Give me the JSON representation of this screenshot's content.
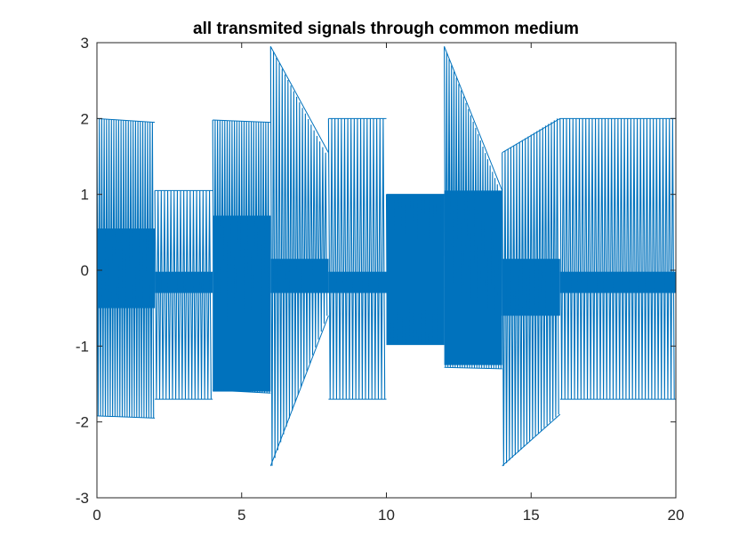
{
  "chart_data": {
    "type": "line",
    "title": "all transmited signals through common medium",
    "xlabel": "",
    "ylabel": "",
    "xlim": [
      0,
      20
    ],
    "ylim": [
      -3,
      3
    ],
    "x_ticks": [
      "0",
      "5",
      "10",
      "15",
      "20"
    ],
    "y_ticks": [
      "3",
      "2",
      "1",
      "0",
      "-1",
      "-2",
      "-3"
    ],
    "grid": false,
    "legend": "none",
    "line_color": "#0072BD",
    "series": [
      {
        "segments": [
          {
            "x_start": 0,
            "x_end": 2,
            "peaks": [
              2.0,
              1.95
            ],
            "troughs": [
              -1.92,
              -1.95
            ],
            "core": [
              0.55,
              -0.5
            ],
            "cycles": 24
          },
          {
            "x_start": 2,
            "x_end": 4,
            "peaks": [
              1.05
            ],
            "troughs": [
              -1.7
            ],
            "core": [
              -0.02,
              -0.3
            ],
            "cycles": 18
          },
          {
            "x_start": 4,
            "x_end": 6,
            "peaks": [
              1.98,
              1.95
            ],
            "troughs": [
              -1.58,
              -1.62
            ],
            "core": [
              0.72,
              -1.6
            ],
            "cycles": 24
          },
          {
            "x_start": 6,
            "x_end": 8,
            "peaks": [
              2.95,
              1.55
            ],
            "troughs": [
              -2.58,
              -0.6
            ],
            "core": [
              0.15,
              -0.3
            ],
            "cycles": 20
          },
          {
            "x_start": 8,
            "x_end": 10,
            "peaks": [
              2.0
            ],
            "troughs": [
              -1.7
            ],
            "core": [
              -0.02,
              -0.3
            ],
            "cycles": 18
          },
          {
            "x_start": 10,
            "x_end": 12,
            "peaks": [
              1.0
            ],
            "troughs": [
              -0.98
            ],
            "core": [
              1.0,
              -0.98
            ],
            "cycles": 40
          },
          {
            "x_start": 12,
            "x_end": 14,
            "peaks": [
              2.95,
              1.05
            ],
            "troughs": [
              -1.28,
              -1.3
            ],
            "core": [
              1.05,
              -1.25
            ],
            "cycles": 24
          },
          {
            "x_start": 14,
            "x_end": 16,
            "peaks": [
              1.55,
              2.0
            ],
            "troughs": [
              -2.58,
              -1.9
            ],
            "core": [
              0.15,
              -0.6
            ],
            "cycles": 20
          },
          {
            "x_start": 16,
            "x_end": 20,
            "peaks": [
              2.0
            ],
            "troughs": [
              -1.7
            ],
            "core": [
              -0.02,
              -0.3
            ],
            "cycles": 36
          }
        ]
      }
    ]
  }
}
